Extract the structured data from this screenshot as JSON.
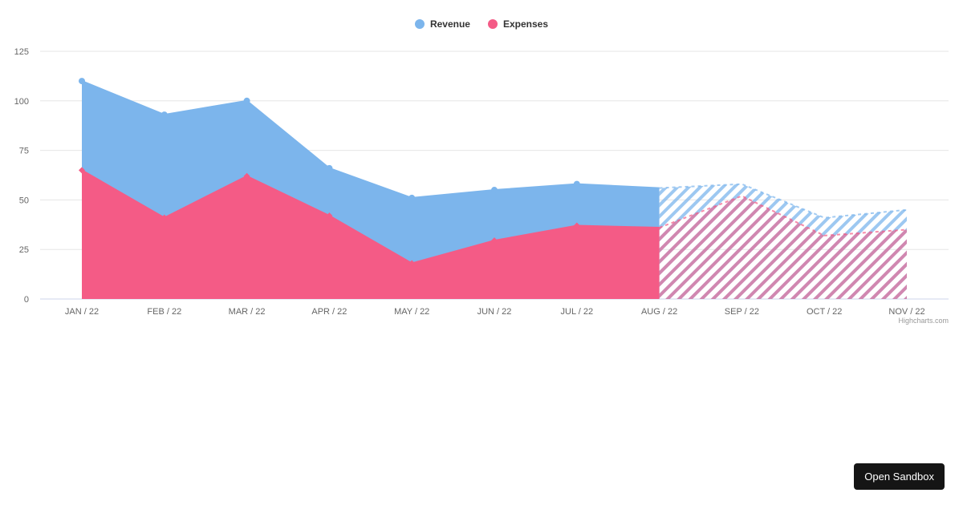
{
  "chart_data": {
    "type": "area",
    "categories": [
      "JAN / 22",
      "FEB / 22",
      "MAR / 22",
      "APR / 22",
      "MAY / 22",
      "JUN / 22",
      "JUL / 22",
      "AUG / 22",
      "SEP / 22",
      "OCT / 22",
      "NOV / 22"
    ],
    "series": [
      {
        "name": "Revenue",
        "color": "#7cb5ec",
        "values": [
          110,
          93,
          100,
          66,
          51,
          55,
          58,
          56,
          58,
          41,
          45
        ]
      },
      {
        "name": "Expenses",
        "color": "#f45b86",
        "values": [
          65,
          41,
          62,
          42,
          18,
          29.5,
          37,
          36,
          52,
          32,
          35
        ]
      }
    ],
    "forecast_zone_from": "AUG / 22",
    "forecast_style": "hatched",
    "ylim": [
      0,
      125
    ],
    "yticks": [
      0,
      25,
      50,
      75,
      100,
      125
    ],
    "grid": true,
    "legend": "top-center",
    "credits": "Highcharts.com"
  },
  "ui": {
    "open_sandbox": "Open Sandbox"
  }
}
